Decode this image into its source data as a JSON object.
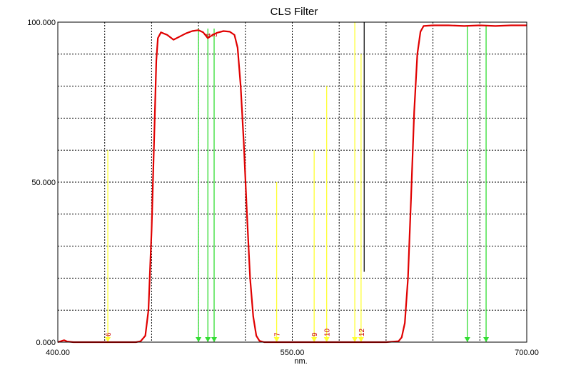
{
  "chart_data": {
    "type": "line",
    "title": "CLS Filter",
    "xlabel": "nm.",
    "ylabel": "",
    "xlim": [
      400,
      700
    ],
    "ylim": [
      0,
      100
    ],
    "x_ticks": [
      400,
      550,
      700
    ],
    "x_tick_labels": [
      "400.00",
      "550.00",
      "700.00"
    ],
    "y_ticks": [
      0,
      50,
      100
    ],
    "y_tick_labels": [
      "0.000",
      "50.000",
      "100.000"
    ],
    "grid": true,
    "grid_x_step": 30,
    "grid_y_step": 10,
    "series": [
      {
        "color": "#e00000",
        "points": [
          [
            400,
            0
          ],
          [
            402,
            0.3
          ],
          [
            404,
            0.6
          ],
          [
            406,
            0.2
          ],
          [
            410,
            0
          ],
          [
            440,
            0
          ],
          [
            450,
            0
          ],
          [
            453,
            0.3
          ],
          [
            456,
            2
          ],
          [
            458,
            10
          ],
          [
            460,
            35
          ],
          [
            462,
            70
          ],
          [
            463,
            88
          ],
          [
            464,
            95
          ],
          [
            466,
            96.8
          ],
          [
            470,
            96
          ],
          [
            474,
            94.5
          ],
          [
            478,
            95.5
          ],
          [
            482,
            96.5
          ],
          [
            486,
            97.2
          ],
          [
            490,
            97.5
          ],
          [
            493,
            96.8
          ],
          [
            496,
            95
          ],
          [
            499,
            96
          ],
          [
            502,
            96.7
          ],
          [
            506,
            97.2
          ],
          [
            510,
            97
          ],
          [
            513,
            96
          ],
          [
            515,
            92
          ],
          [
            517,
            80
          ],
          [
            519,
            62
          ],
          [
            521,
            40
          ],
          [
            523,
            20
          ],
          [
            525,
            8
          ],
          [
            527,
            2
          ],
          [
            529,
            0.4
          ],
          [
            532,
            0
          ],
          [
            560,
            0
          ],
          [
            580,
            0
          ],
          [
            610,
            0
          ],
          [
            618,
            0.3
          ],
          [
            620,
            1.5
          ],
          [
            622,
            6
          ],
          [
            624,
            20
          ],
          [
            626,
            45
          ],
          [
            628,
            72
          ],
          [
            630,
            90
          ],
          [
            632,
            97
          ],
          [
            634,
            98.8
          ],
          [
            640,
            99
          ],
          [
            650,
            99
          ],
          [
            660,
            98.8
          ],
          [
            670,
            99
          ],
          [
            680,
            98.8
          ],
          [
            690,
            99
          ],
          [
            700,
            99
          ]
        ]
      }
    ],
    "markers": [
      {
        "label": "6",
        "x": 432,
        "height": 60,
        "color": "#ffff33"
      },
      {
        "label": "",
        "x": 490,
        "height": 98,
        "color": "#33dd33"
      },
      {
        "label": "4",
        "x": 496,
        "height": 98,
        "color": "#33dd33"
      },
      {
        "label": "3",
        "x": 500,
        "height": 98,
        "color": "#33dd33"
      },
      {
        "label": "7",
        "x": 540,
        "height": 50,
        "color": "#ffff33"
      },
      {
        "label": "9",
        "x": 564,
        "height": 60,
        "color": "#ffff33"
      },
      {
        "label": "10",
        "x": 572,
        "height": 80,
        "color": "#ffff33"
      },
      {
        "label": "",
        "x": 590,
        "height": 100,
        "color": "#ffff33"
      },
      {
        "label": "12",
        "x": 594,
        "height": 90,
        "color": "#ffff33"
      },
      {
        "label": "",
        "x": 662,
        "height": 99,
        "color": "#33dd33"
      },
      {
        "label": "",
        "x": 674,
        "height": 99,
        "color": "#33dd33"
      }
    ],
    "cursor_x": 596,
    "cursor_y_range": [
      22,
      100
    ]
  }
}
